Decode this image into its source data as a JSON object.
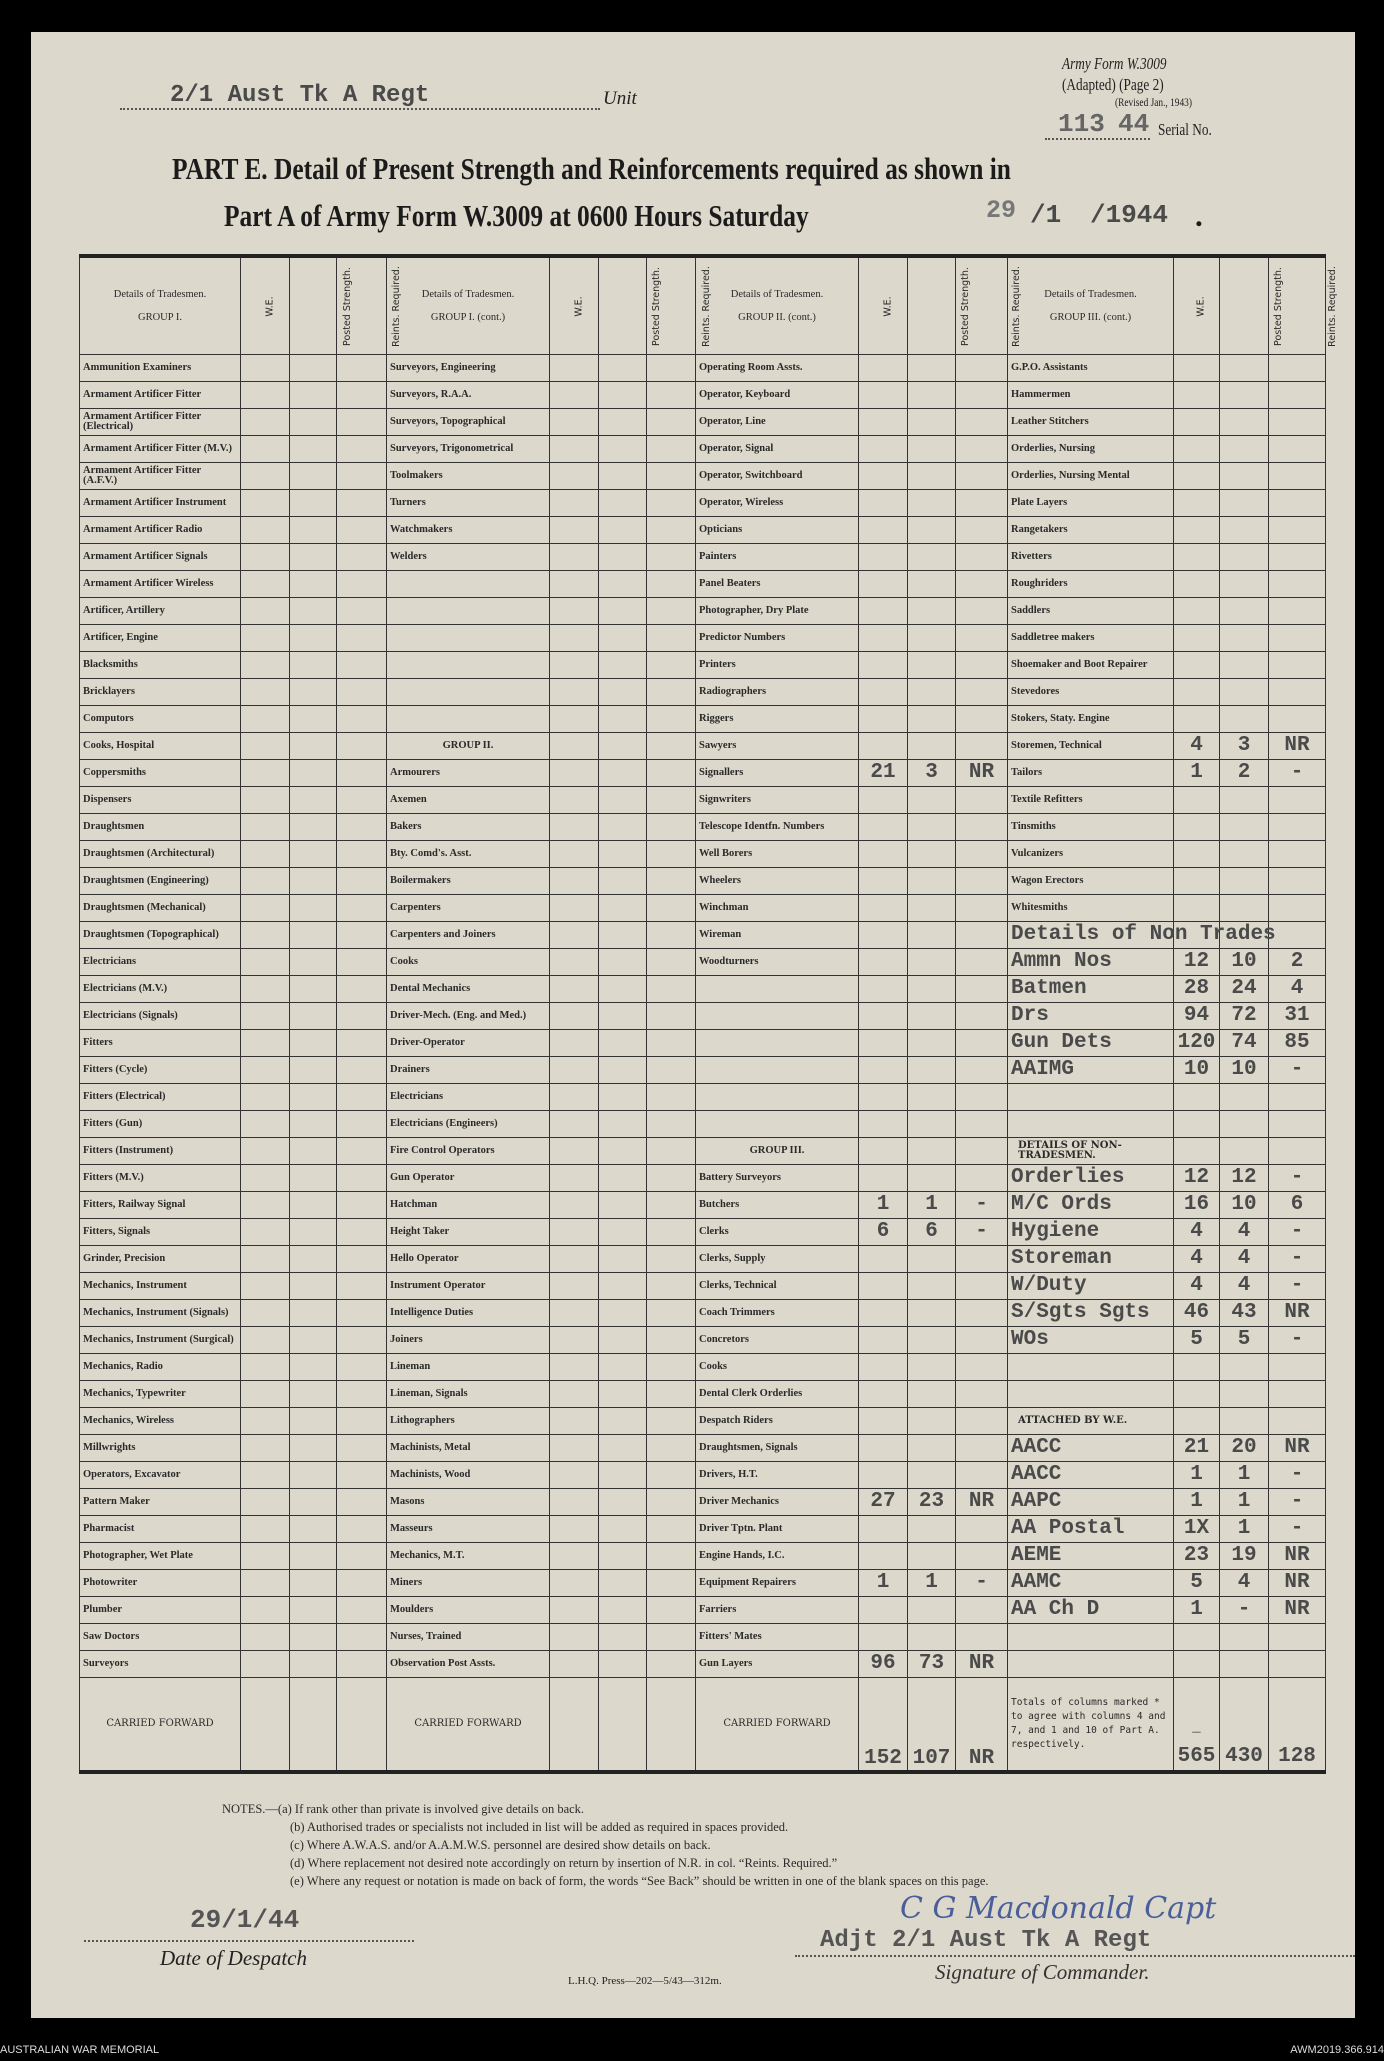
{
  "form": {
    "unit_value": "2/1 Aust Tk A Regt",
    "unit_label": "Unit",
    "army_form": "Army Form W.3009",
    "adapted": "(Adapted) (Page 2)",
    "revised": "(Revised Jan., 1943)",
    "serial_number": "113",
    "serial_year": "44",
    "serial_label": "Serial No.",
    "title_line1": "PART E.  Detail of Present Strength and Reinforcements required as shown in",
    "title_line2": "Part A of Army Form W.3009 at 0600 Hours Saturday",
    "date_day": "29",
    "date_month": "/1",
    "date_year": "/1944",
    "date_end": "."
  },
  "headers": {
    "details": "Details of Tradesmen.",
    "groups": [
      "GROUP I.",
      "GROUP I. (cont.)",
      "GROUP II. (cont.)",
      "GROUP III. (cont.)"
    ],
    "we": "W.E.",
    "posted": "Posted Strength.",
    "reints": "Reints. Required."
  },
  "columns": [
    [
      {
        "l": "Ammunition Examiners"
      },
      {
        "l": "Armament Artificer Fitter"
      },
      {
        "l": "Armament Artificer Fitter (Electrical)"
      },
      {
        "l": "Armament Artificer Fitter (M.V.)"
      },
      {
        "l": "Armament Artificer Fitter (A.F.V.)"
      },
      {
        "l": "Armament Artificer Instrument"
      },
      {
        "l": "Armament Artificer Radio"
      },
      {
        "l": "Armament Artificer Signals"
      },
      {
        "l": "Armament Artificer Wireless"
      },
      {
        "l": "Artificer, Artillery"
      },
      {
        "l": "Artificer, Engine"
      },
      {
        "l": "Blacksmiths"
      },
      {
        "l": "Bricklayers"
      },
      {
        "l": "Computors"
      },
      {
        "l": "Cooks, Hospital"
      },
      {
        "l": "Coppersmiths"
      },
      {
        "l": "Dispensers"
      },
      {
        "l": "Draughtsmen"
      },
      {
        "l": "Draughtsmen (Architectural)"
      },
      {
        "l": "Draughtsmen (Engineering)"
      },
      {
        "l": "Draughtsmen (Mechanical)"
      },
      {
        "l": "Draughtsmen (Topographical)"
      },
      {
        "l": "Electricians"
      },
      {
        "l": "Electricians (M.V.)"
      },
      {
        "l": "Electricians (Signals)"
      },
      {
        "l": "Fitters"
      },
      {
        "l": "Fitters (Cycle)"
      },
      {
        "l": "Fitters (Electrical)"
      },
      {
        "l": "Fitters (Gun)"
      },
      {
        "l": "Fitters (Instrument)"
      },
      {
        "l": "Fitters (M.V.)"
      },
      {
        "l": "Fitters, Railway Signal"
      },
      {
        "l": "Fitters, Signals"
      },
      {
        "l": "Grinder, Precision"
      },
      {
        "l": "Mechanics, Instrument"
      },
      {
        "l": "Mechanics, Instrument (Signals)"
      },
      {
        "l": "Mechanics, Instrument (Surgical)"
      },
      {
        "l": "Mechanics, Radio"
      },
      {
        "l": "Mechanics, Typewriter"
      },
      {
        "l": "Mechanics, Wireless"
      },
      {
        "l": "Millwrights"
      },
      {
        "l": "Operators, Excavator"
      },
      {
        "l": "Pattern Maker"
      },
      {
        "l": "Pharmacist"
      },
      {
        "l": "Photographer, Wet Plate"
      },
      {
        "l": "Photowriter"
      },
      {
        "l": "Plumber"
      },
      {
        "l": "Saw Doctors"
      },
      {
        "l": "Surveyors"
      }
    ],
    [
      {
        "l": "Surveyors, Engineering"
      },
      {
        "l": "Surveyors, R.A.A."
      },
      {
        "l": "Surveyors, Topographical"
      },
      {
        "l": "Surveyors, Trigonometrical"
      },
      {
        "l": "Toolmakers"
      },
      {
        "l": "Turners"
      },
      {
        "l": "Watchmakers"
      },
      {
        "l": "Welders"
      },
      {
        "l": ""
      },
      {
        "l": ""
      },
      {
        "l": ""
      },
      {
        "l": ""
      },
      {
        "l": ""
      },
      {
        "l": ""
      },
      {
        "l": "GROUP II.",
        "k": "head"
      },
      {
        "l": "Armourers"
      },
      {
        "l": "Axemen"
      },
      {
        "l": "Bakers"
      },
      {
        "l": "Bty. Comd's. Asst."
      },
      {
        "l": "Boilermakers"
      },
      {
        "l": "Carpenters"
      },
      {
        "l": "Carpenters and Joiners"
      },
      {
        "l": "Cooks"
      },
      {
        "l": "Dental Mechanics"
      },
      {
        "l": "Driver-Mech. (Eng. and Med.)"
      },
      {
        "l": "Driver-Operator"
      },
      {
        "l": "Drainers"
      },
      {
        "l": "Electricians"
      },
      {
        "l": "Electricians (Engineers)"
      },
      {
        "l": "Fire Control Operators"
      },
      {
        "l": "Gun Operator"
      },
      {
        "l": "Hatchman"
      },
      {
        "l": "Height Taker"
      },
      {
        "l": "Hello Operator"
      },
      {
        "l": "Instrument Operator"
      },
      {
        "l": "Intelligence Duties"
      },
      {
        "l": "Joiners"
      },
      {
        "l": "Lineman"
      },
      {
        "l": "Lineman, Signals"
      },
      {
        "l": "Lithographers"
      },
      {
        "l": "Machinists, Metal"
      },
      {
        "l": "Machinists, Wood"
      },
      {
        "l": "Masons"
      },
      {
        "l": "Masseurs"
      },
      {
        "l": "Mechanics, M.T."
      },
      {
        "l": "Miners"
      },
      {
        "l": "Moulders"
      },
      {
        "l": "Nurses, Trained"
      },
      {
        "l": "Observation Post Assts."
      }
    ],
    [
      {
        "l": "Operating Room Assts."
      },
      {
        "l": "Operator, Keyboard"
      },
      {
        "l": "Operator, Line"
      },
      {
        "l": "Operator, Signal"
      },
      {
        "l": "Operator, Switchboard"
      },
      {
        "l": "Operator, Wireless"
      },
      {
        "l": "Opticians"
      },
      {
        "l": "Painters"
      },
      {
        "l": "Panel Beaters"
      },
      {
        "l": "Photographer, Dry Plate"
      },
      {
        "l": "Predictor Numbers"
      },
      {
        "l": "Printers"
      },
      {
        "l": "Radiographers"
      },
      {
        "l": "Riggers"
      },
      {
        "l": "Sawyers"
      },
      {
        "l": "Signallers",
        "w": "21",
        "p": "3",
        "r": "NR"
      },
      {
        "l": "Signwriters"
      },
      {
        "l": "Telescope Identfn. Numbers"
      },
      {
        "l": "Well Borers"
      },
      {
        "l": "Wheelers"
      },
      {
        "l": "Winchman"
      },
      {
        "l": "Wireman"
      },
      {
        "l": "Woodturners"
      },
      {
        "l": ""
      },
      {
        "l": ""
      },
      {
        "l": ""
      },
      {
        "l": ""
      },
      {
        "l": ""
      },
      {
        "l": ""
      },
      {
        "l": "GROUP III.",
        "k": "head"
      },
      {
        "l": "Battery Surveyors"
      },
      {
        "l": "Butchers",
        "w": "1",
        "p": "1",
        "r": "-"
      },
      {
        "l": "Clerks",
        "w": "6",
        "p": "6",
        "r": "-"
      },
      {
        "l": "Clerks, Supply"
      },
      {
        "l": "Clerks, Technical"
      },
      {
        "l": "Coach Trimmers"
      },
      {
        "l": "Concretors"
      },
      {
        "l": "Cooks"
      },
      {
        "l": "Dental Clerk Orderlies"
      },
      {
        "l": "Despatch Riders"
      },
      {
        "l": "Draughtsmen, Signals"
      },
      {
        "l": "Drivers, H.T."
      },
      {
        "l": "Driver Mechanics",
        "w": "27",
        "p": "23",
        "r": "NR"
      },
      {
        "l": "Driver Tptn. Plant"
      },
      {
        "l": "Engine Hands, I.C."
      },
      {
        "l": "Equipment Repairers",
        "w": "1",
        "p": "1",
        "r": "-"
      },
      {
        "l": "Farriers"
      },
      {
        "l": "Fitters' Mates"
      },
      {
        "l": "Gun Layers",
        "w": "96",
        "p": "73",
        "r": "NR"
      }
    ],
    [
      {
        "l": "G.P.O. Assistants"
      },
      {
        "l": "Hammermen"
      },
      {
        "l": "Leather Stitchers"
      },
      {
        "l": "Orderlies, Nursing"
      },
      {
        "l": "Orderlies, Nursing Mental"
      },
      {
        "l": "Plate Layers"
      },
      {
        "l": "Rangetakers"
      },
      {
        "l": "Rivetters"
      },
      {
        "l": "Roughriders"
      },
      {
        "l": "Saddlers"
      },
      {
        "l": "Saddletree makers"
      },
      {
        "l": "Shoemaker and Boot Repairer"
      },
      {
        "l": "Stevedores"
      },
      {
        "l": "Stokers, Staty. Engine"
      },
      {
        "l": "Storemen, Technical",
        "w": "4",
        "p": "3",
        "r": "NR"
      },
      {
        "l": "Tailors",
        "w": "1",
        "p": "2",
        "r": "-"
      },
      {
        "l": "Textile Refitters"
      },
      {
        "l": "Tinsmiths"
      },
      {
        "l": "Vulcanizers"
      },
      {
        "l": "Wagon Erectors"
      },
      {
        "l": "Whitesmiths"
      },
      {
        "l": "Details of Non Trades",
        "k": "typed"
      },
      {
        "l": "Ammn Nos",
        "k": "typed",
        "w": "12",
        "p": "10",
        "r": "2"
      },
      {
        "l": "Batmen",
        "k": "typed",
        "w": "28",
        "p": "24",
        "r": "4"
      },
      {
        "l": "Drs",
        "k": "typed",
        "w": "94",
        "p": "72",
        "r": "31"
      },
      {
        "l": "Gun Dets",
        "k": "typed",
        "w": "120",
        "p": "74",
        "r": "85"
      },
      {
        "l": "AAIMG",
        "k": "typed",
        "w": "10",
        "p": "10",
        "r": "-"
      },
      {
        "l": ""
      },
      {
        "l": ""
      },
      {
        "l": "DETAILS OF NON-TRADESMEN.",
        "k": "small"
      },
      {
        "l": "Orderlies",
        "k": "typed",
        "w": "12",
        "p": "12",
        "r": "-"
      },
      {
        "l": "M/C Ords",
        "k": "typed",
        "w": "16",
        "p": "10",
        "r": "6"
      },
      {
        "l": "Hygiene",
        "k": "typed",
        "w": "4",
        "p": "4",
        "r": "-"
      },
      {
        "l": "Storeman",
        "k": "typed",
        "w": "4",
        "p": "4",
        "r": "-"
      },
      {
        "l": "W/Duty",
        "k": "typed",
        "w": "4",
        "p": "4",
        "r": "-"
      },
      {
        "l": "S/Sgts Sgts",
        "k": "typed",
        "w": "46",
        "p": "43",
        "r": "NR"
      },
      {
        "l": " WOs",
        "k": "typed",
        "w": "5",
        "p": "5",
        "r": "-"
      },
      {
        "l": ""
      },
      {
        "l": ""
      },
      {
        "l": "ATTACHED BY W.E.",
        "k": "small"
      },
      {
        "l": "AACC",
        "k": "typed",
        "w": "21",
        "p": "20",
        "r": "NR"
      },
      {
        "l": "AACC",
        "k": "typed",
        "w": "1",
        "p": "1",
        "r": "-"
      },
      {
        "l": "AAPC",
        "k": "typed",
        "w": "1",
        "p": "1",
        "r": "-"
      },
      {
        "l": "AA Postal",
        "k": "typed",
        "w": "1X",
        "p": "1",
        "r": "-"
      },
      {
        "l": "AEME",
        "k": "typed",
        "w": "23",
        "p": "19",
        "r": "NR"
      },
      {
        "l": "AAMC",
        "k": "typed",
        "w": "5",
        "p": "4",
        "r": "NR"
      },
      {
        "l": "AA Ch D",
        "k": "typed",
        "w": "1",
        "p": "-",
        "r": "NR"
      },
      {
        "l": ""
      },
      {
        "l": ""
      }
    ]
  ],
  "carried_forward": {
    "label": "CARRIED FORWARD",
    "group3_cont": {
      "we": "152",
      "posted": "107",
      "reints": "NR"
    },
    "totals_note": "Totals of columns marked * to agree with columns 4 and 7, and 1 and 10 of Part A. respectively.",
    "totals_dash": "—",
    "totals": {
      "we": "565",
      "posted": "430",
      "reints": "128"
    }
  },
  "notes": {
    "a": "NOTES.—(a) If rank other than private is involved give details on back.",
    "b": "(b) Authorised trades or specialists not included in list will be added as required in spaces provided.",
    "c": "(c) Where A.W.A.S. and/or A.A.M.W.S. personnel are desired show details on back.",
    "d": "(d) Where replacement not desired note accordingly on return by insertion of N.R. in col. “Reints. Required.”",
    "e": "(e) Where any request or notation is made on back of form, the words “See Back” should be written in one of the blank spaces on this page."
  },
  "footer": {
    "despatch_date": "29/1/44",
    "despatch_label": "Date of Despatch",
    "signature": "C G Macdonald Capt",
    "signer_typed": "Adjt  2/1 Aust Tk A  Regt",
    "signature_label": "Signature of Commander.",
    "press": "L.H.Q.  Press—202—5/43—312m."
  },
  "caption": {
    "left": "AUSTRALIAN WAR MEMORIAL",
    "right": "AWM2019.366.914"
  },
  "colors": {
    "paper": "#dcd8cb",
    "ink": "#222222",
    "typewriter": "#4a4a4a",
    "signature_ink": "#4a5f9a"
  }
}
